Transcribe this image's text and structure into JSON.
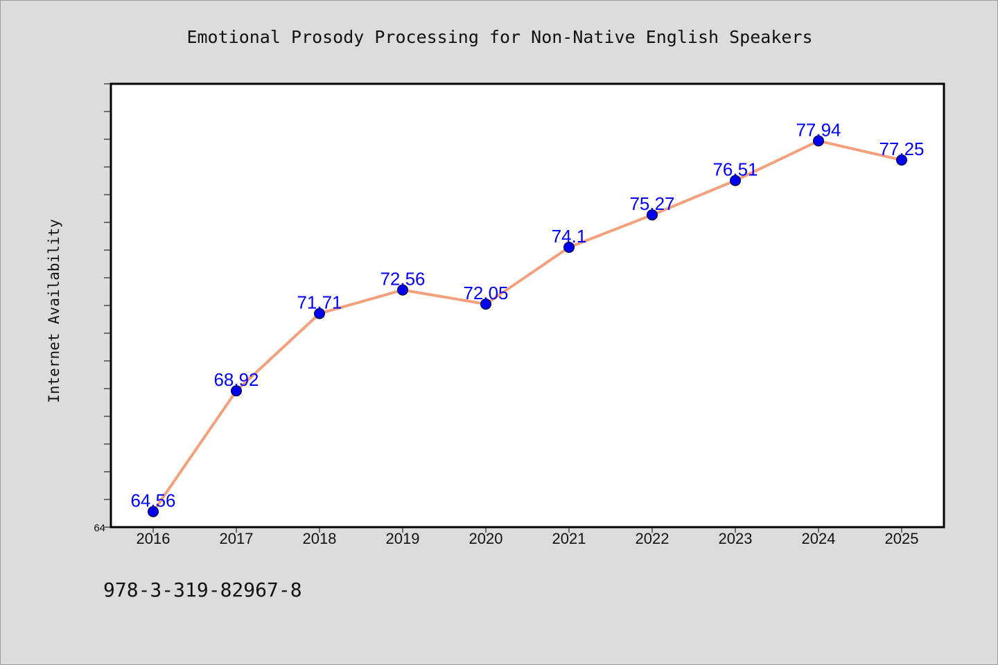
{
  "isbn_text": "978-3-319-82967-8",
  "colors": {
    "background": "#dcdcdc",
    "plot_background": "#ffffff",
    "line": "#f4a07c",
    "marker": "#0000ee",
    "data_label": "#0000ff",
    "axis": "#000000"
  },
  "chart_data": {
    "type": "line",
    "title": "Emotional Prosody Processing for Non-Native English Speakers",
    "xlabel": "",
    "ylabel": "Internet Availability",
    "categories": [
      "2016",
      "2017",
      "2018",
      "2019",
      "2020",
      "2021",
      "2022",
      "2023",
      "2024",
      "2025"
    ],
    "series": [
      {
        "values": [
          64.56,
          68.92,
          71.71,
          72.56,
          72.05,
          74.1,
          75.27,
          76.51,
          77.94,
          77.25
        ],
        "labels": [
          "64.56",
          "68.92",
          "71.71",
          "72.56",
          "72.05",
          "74.1",
          "75.27",
          "76.51",
          "77.94",
          "77.25"
        ]
      }
    ],
    "ylim": [
      64,
      80
    ],
    "y_tick_labels": [
      "64"
    ],
    "grid": false,
    "legend": "none"
  }
}
